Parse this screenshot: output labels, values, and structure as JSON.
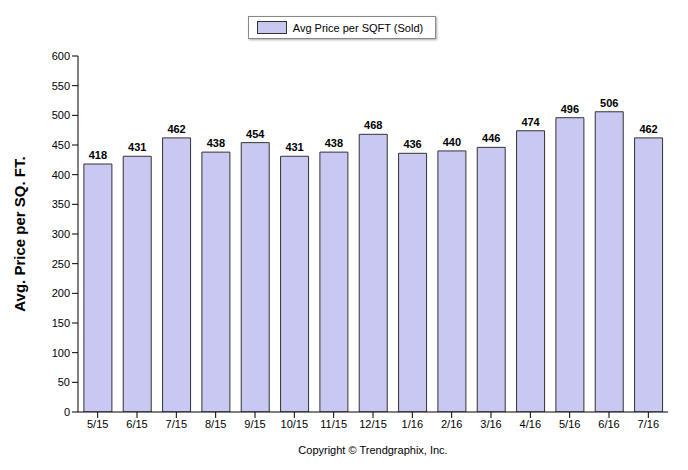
{
  "chart_data": {
    "type": "bar",
    "xlabel": "Copyright © Trendgraphix, Inc.",
    "ylabel": "Avg. Price per SQ. FT.",
    "categories": [
      "5/15",
      "6/15",
      "7/15",
      "8/15",
      "9/15",
      "10/15",
      "11/15",
      "12/15",
      "1/16",
      "2/16",
      "3/16",
      "4/16",
      "5/16",
      "6/16",
      "7/16"
    ],
    "series": [
      {
        "name": "Avg Price per SQFT (Sold)",
        "color": "#c8c8f2",
        "values": [
          418,
          431,
          462,
          438,
          454,
          431,
          438,
          468,
          436,
          440,
          446,
          474,
          496,
          506,
          462
        ]
      }
    ],
    "ylim": [
      0,
      600
    ],
    "yticks": [
      0,
      50,
      100,
      150,
      200,
      250,
      300,
      350,
      400,
      450,
      500,
      550,
      600
    ],
    "grid": false,
    "legend": "top",
    "data_labels": true
  }
}
